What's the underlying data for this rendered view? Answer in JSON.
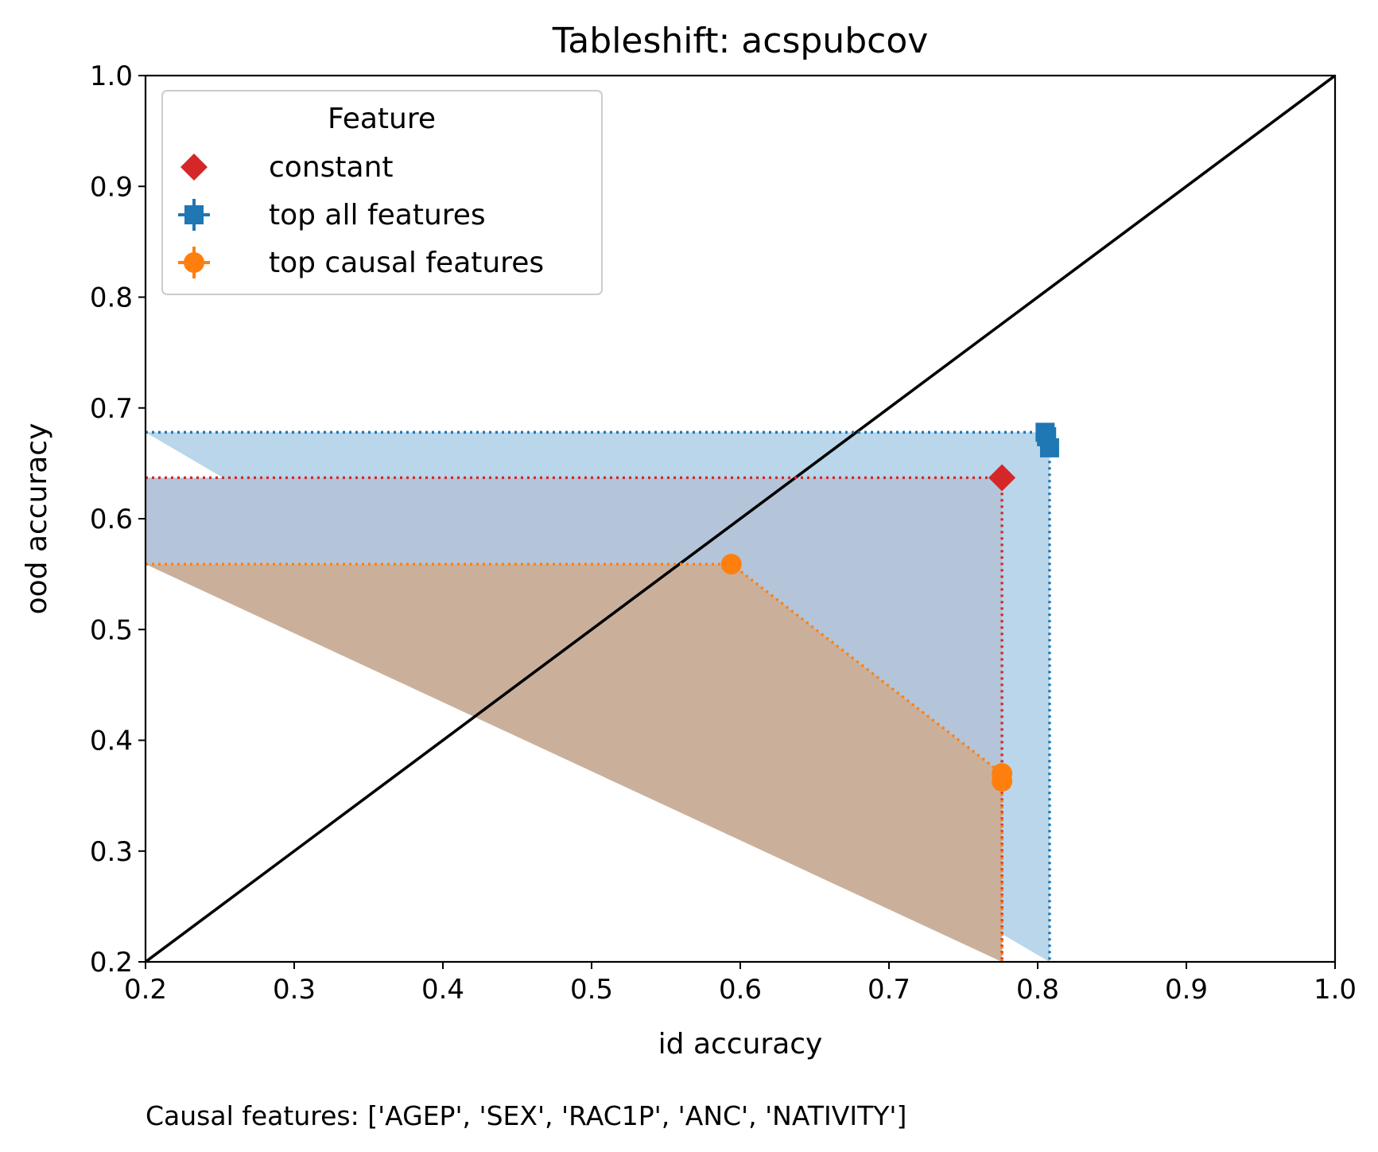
{
  "chart_data": {
    "type": "scatter",
    "title": "Tableshift: acspubcov",
    "xlabel": "id accuracy",
    "ylabel": "ood accuracy",
    "xlim": [
      0.2,
      1.0
    ],
    "ylim": [
      0.2,
      1.0
    ],
    "xticks": [
      "0.2",
      "0.3",
      "0.4",
      "0.5",
      "0.6",
      "0.7",
      "0.8",
      "0.9",
      "1.0"
    ],
    "yticks": [
      "0.2",
      "0.3",
      "0.4",
      "0.5",
      "0.6",
      "0.7",
      "0.8",
      "0.9",
      "1.0"
    ],
    "grid": false,
    "diagonal": {
      "from": [
        0.2,
        0.2
      ],
      "to": [
        1.0,
        1.0
      ],
      "color": "#000000"
    },
    "legend": {
      "title": "Feature",
      "placement": "top-left",
      "entries": [
        "constant",
        "top all features",
        "top causal features"
      ]
    },
    "series": [
      {
        "name": "constant",
        "marker": "diamond",
        "color": "#d62728",
        "points": [
          {
            "x": 0.776,
            "y": 0.637
          }
        ],
        "frontier": [
          {
            "x": 0.776,
            "y": 0.637
          }
        ],
        "shaded": false
      },
      {
        "name": "top all features",
        "marker": "square",
        "color": "#1f77b4",
        "fill": "#b9d6ea",
        "points": [
          {
            "x": 0.805,
            "y": 0.678
          },
          {
            "x": 0.806,
            "y": 0.674
          },
          {
            "x": 0.808,
            "y": 0.664
          }
        ],
        "frontier": [
          {
            "x": 0.805,
            "y": 0.678
          },
          {
            "x": 0.808,
            "y": 0.664
          }
        ],
        "shaded": true
      },
      {
        "name": "top causal features",
        "marker": "circle",
        "color": "#ff7f0e",
        "fill": "#cab09b",
        "points": [
          {
            "x": 0.594,
            "y": 0.559
          },
          {
            "x": 0.776,
            "y": 0.37
          },
          {
            "x": 0.776,
            "y": 0.363
          }
        ],
        "frontier": [
          {
            "x": 0.594,
            "y": 0.559
          },
          {
            "x": 0.776,
            "y": 0.37
          },
          {
            "x": 0.776,
            "y": 0.363
          }
        ],
        "shaded": true
      }
    ],
    "overlap_fill": "#b4c5d9",
    "footnote": "Causal features: ['AGEP', 'SEX', 'RAC1P', 'ANC', 'NATIVITY']"
  }
}
